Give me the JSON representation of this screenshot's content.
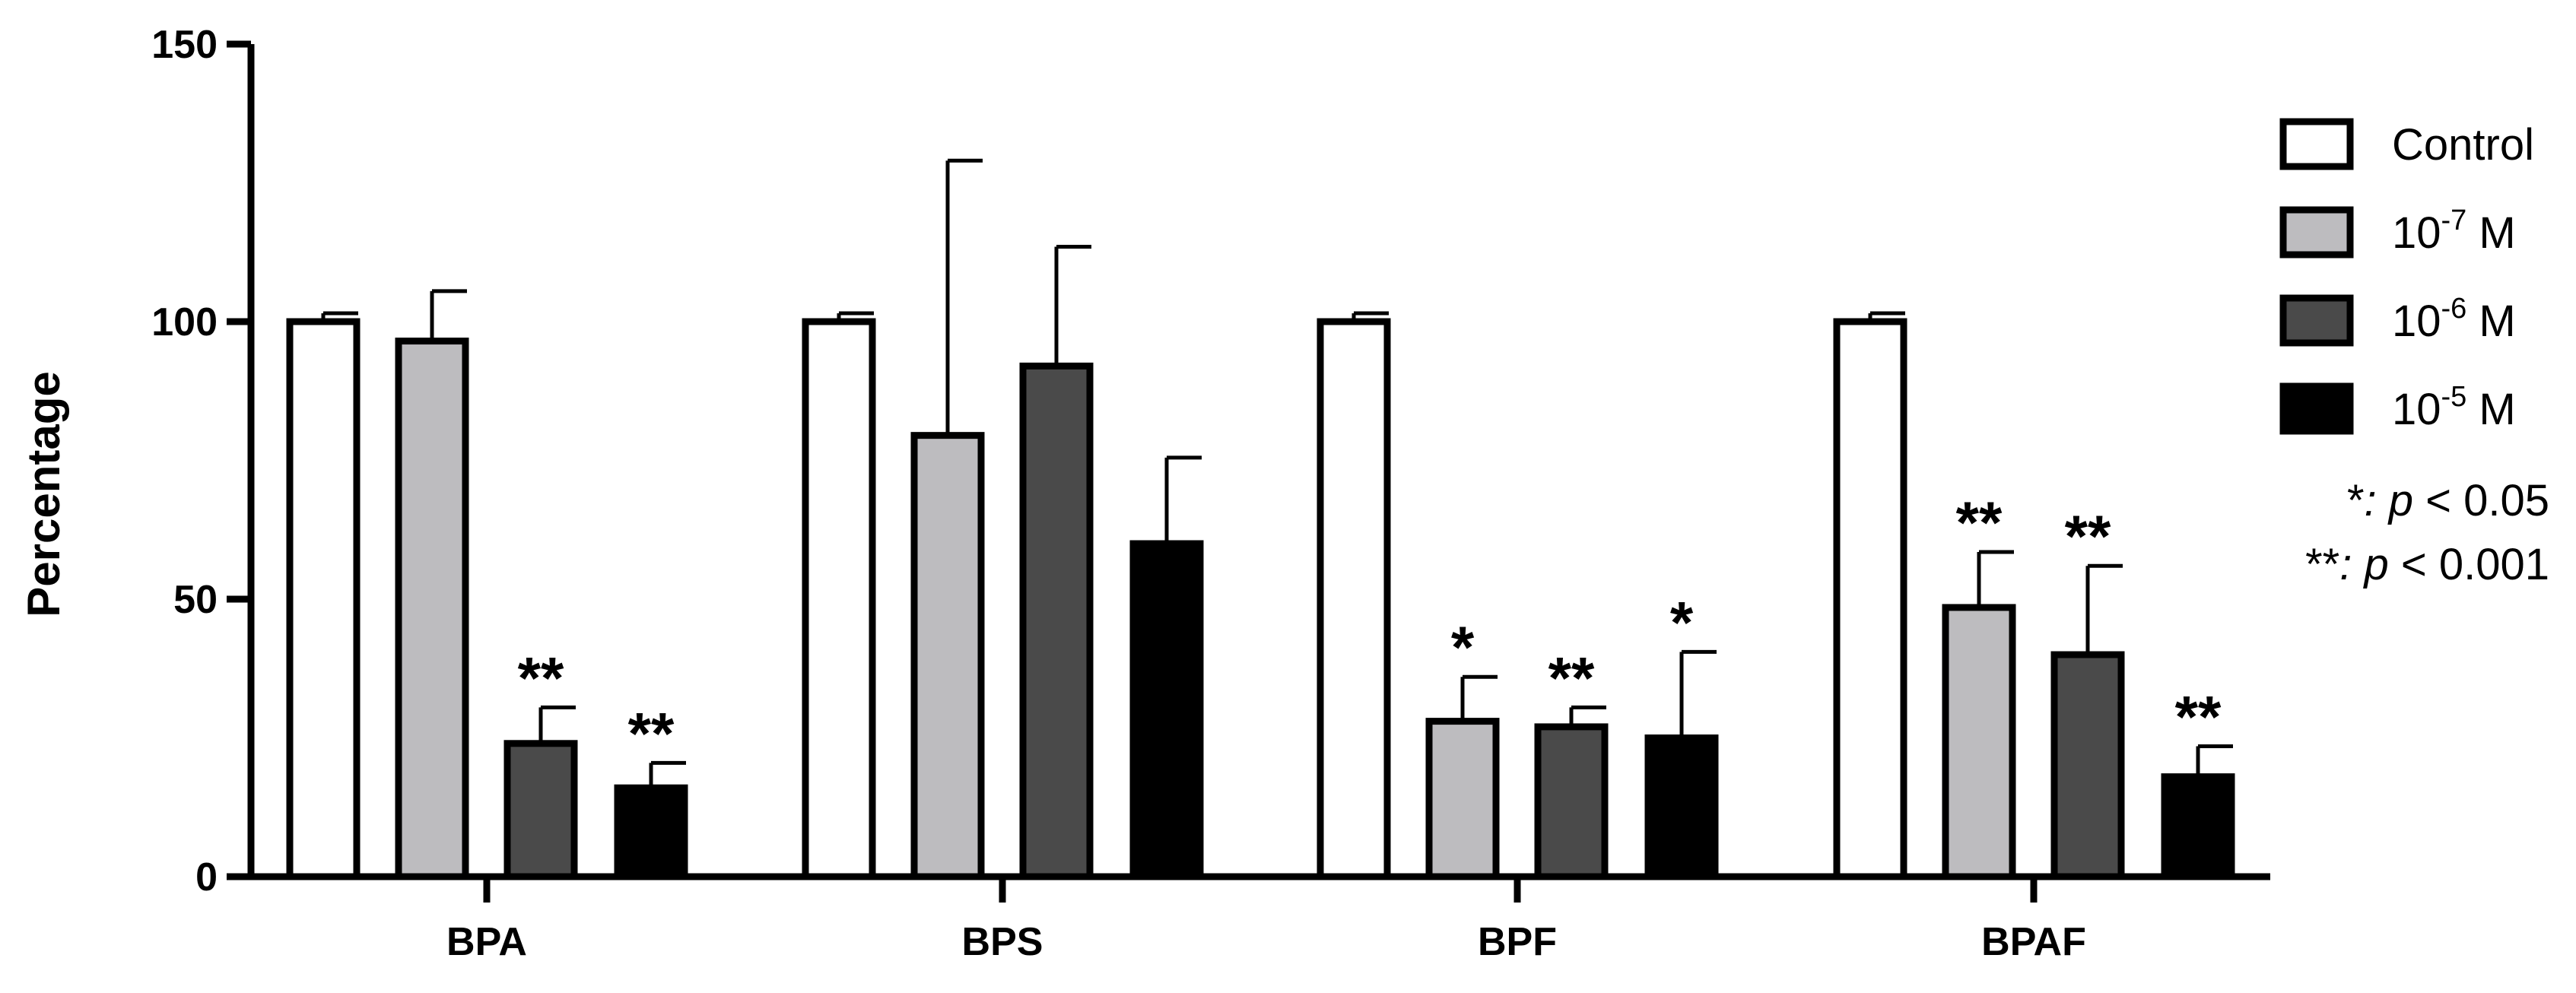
{
  "chart_data": {
    "type": "bar",
    "categories": [
      "BPA",
      "BPS",
      "BPF",
      "BPAF"
    ],
    "ylabel": "Percentage",
    "xlabel": "",
    "ylim": [
      0,
      150
    ],
    "yticks": [
      "0",
      "50",
      "100",
      "150"
    ],
    "grid": false,
    "legend_placement": "right",
    "series": [
      {
        "name": "Control",
        "color": "#ffffff",
        "values": [
          100,
          100,
          100,
          100
        ],
        "errors": [
          1.5,
          1.5,
          1.5,
          1.5
        ],
        "significance": [
          "",
          "",
          "",
          ""
        ]
      },
      {
        "name": "10-7 M",
        "name_base": "10",
        "name_exp": "-7",
        "name_unit": " M",
        "color": "#bdbcbf",
        "values": [
          96.5,
          79.5,
          28,
          48.5
        ],
        "errors": [
          9,
          49.5,
          8,
          10
        ],
        "significance": [
          "",
          "",
          "*",
          "**"
        ]
      },
      {
        "name": "10-6 M",
        "name_base": "10",
        "name_exp": "-6",
        "name_unit": " M",
        "color": "#4a4a4a",
        "values": [
          24,
          92,
          27,
          40
        ],
        "errors": [
          6.5,
          21.5,
          3.5,
          16
        ],
        "significance": [
          "**",
          "",
          "**",
          "**"
        ]
      },
      {
        "name": "10-5 M",
        "name_base": "10",
        "name_exp": "-5",
        "name_unit": " M",
        "color": "#000000",
        "values": [
          16,
          60,
          25,
          18
        ],
        "errors": [
          4.5,
          15.5,
          15.5,
          5.5
        ],
        "significance": [
          "**",
          "",
          "*",
          "**"
        ]
      }
    ],
    "notes": [
      {
        "mark": "*",
        "colon": ":",
        "p": "p",
        "rest": " < 0.05"
      },
      {
        "mark": "**",
        "colon": ":",
        "p": "p",
        "rest": " < 0.001"
      }
    ]
  }
}
